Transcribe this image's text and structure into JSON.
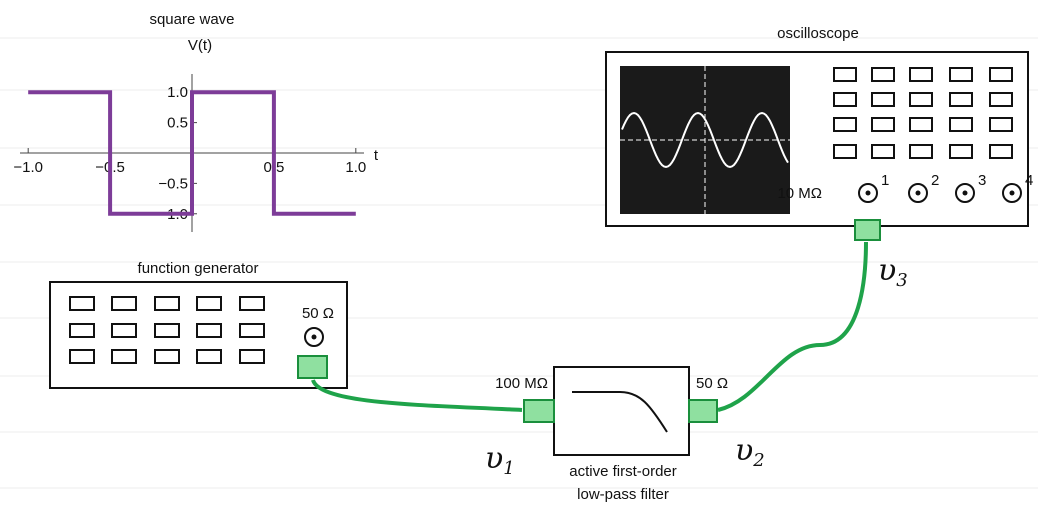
{
  "chart_data": {
    "type": "line",
    "title": "square wave",
    "ylabel": "V(t)",
    "xlabel": "t",
    "x": [
      -1,
      -0.5,
      -0.5,
      0,
      0,
      0.5,
      0.5,
      1
    ],
    "values": [
      1,
      1,
      -1,
      -1,
      1,
      1,
      -1,
      -1
    ],
    "color": "#7d3c98",
    "xlim": [
      -1.05,
      1.05
    ],
    "ylim": [
      -1.3,
      1.3
    ],
    "xticks": [
      {
        "value": -1,
        "label": "−1.0"
      },
      {
        "value": -0.5,
        "label": "−0.5"
      },
      {
        "value": 0.5,
        "label": "0.5"
      },
      {
        "value": 1,
        "label": "1.0"
      }
    ],
    "yticks": [
      {
        "value": 1,
        "label": "1.0"
      },
      {
        "value": 0.5,
        "label": "0.5"
      },
      {
        "value": -0.5,
        "label": "−0.5"
      },
      {
        "value": -1,
        "label": "−1.0"
      }
    ]
  },
  "oscilloscope": {
    "title": "oscilloscope",
    "impedance": "10 MΩ",
    "channels": [
      "1",
      "2",
      "3",
      "4"
    ]
  },
  "function_generator": {
    "title": "function generator",
    "impedance": "50 Ω"
  },
  "filter": {
    "input_impedance": "100 MΩ",
    "output_impedance": "50 Ω",
    "caption": [
      "active first-order",
      "low-pass filter"
    ]
  },
  "signals": [
    {
      "symbol": "υ",
      "index": "1"
    },
    {
      "symbol": "υ",
      "index": "2"
    },
    {
      "symbol": "υ",
      "index": "3"
    }
  ]
}
